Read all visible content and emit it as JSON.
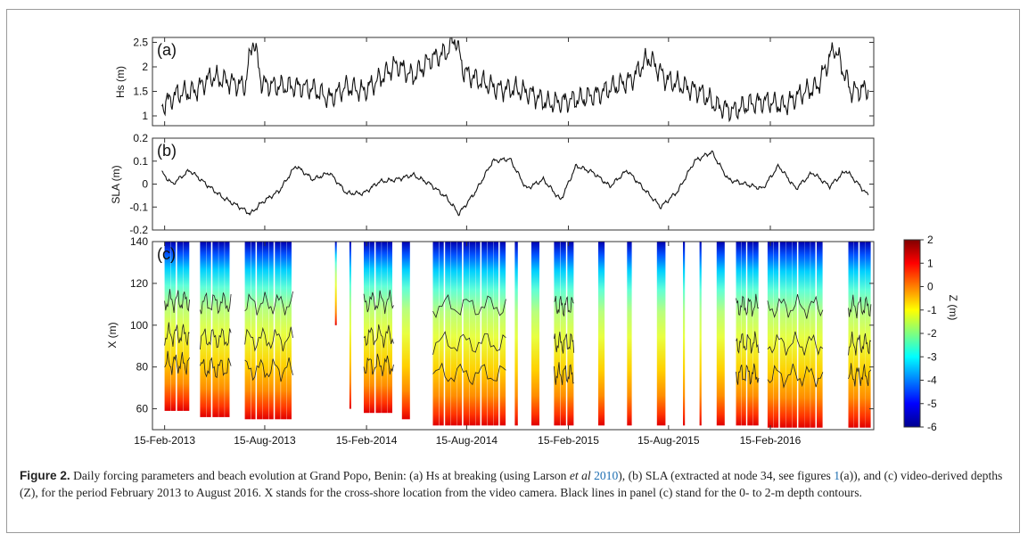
{
  "chart_data": [
    {
      "type": "line",
      "panel_label": "(a)",
      "ylabel": "Hs (m)",
      "ylim": [
        0.8,
        2.6
      ],
      "yticks": [
        "1",
        "1.5",
        "2",
        "2.5"
      ],
      "xlim": [
        "2013-01-24",
        "2016-08-20"
      ],
      "series": [
        {
          "x": [
            "2013-02-10",
            "2013-03-10",
            "2013-04-10",
            "2013-05-10",
            "2013-06-10",
            "2013-07-10",
            "2013-07-25",
            "2013-08-10",
            "2013-09-10",
            "2013-10-10",
            "2013-11-10",
            "2013-12-10",
            "2014-01-10",
            "2014-02-10",
            "2014-03-10",
            "2014-04-10",
            "2014-05-10",
            "2014-06-10",
            "2014-07-10",
            "2014-07-25",
            "2014-08-10",
            "2014-09-10",
            "2014-10-10",
            "2014-11-10",
            "2014-12-10",
            "2015-01-10",
            "2015-02-10",
            "2015-03-10",
            "2015-04-10",
            "2015-05-10",
            "2015-06-10",
            "2015-07-10",
            "2015-08-10",
            "2015-09-10",
            "2015-10-10",
            "2015-11-10",
            "2015-12-10",
            "2016-01-10",
            "2016-02-10",
            "2016-03-10",
            "2016-04-10",
            "2016-05-10",
            "2016-06-10",
            "2016-07-10",
            "2016-08-10"
          ],
          "values": [
            1.2,
            1.45,
            1.5,
            1.8,
            1.7,
            1.6,
            2.6,
            1.65,
            1.6,
            1.6,
            1.55,
            1.35,
            1.6,
            1.5,
            1.75,
            2.05,
            1.8,
            2.15,
            2.3,
            2.6,
            1.9,
            1.7,
            1.55,
            1.55,
            1.45,
            1.25,
            1.3,
            1.35,
            1.45,
            1.6,
            1.75,
            2.2,
            1.75,
            1.6,
            1.5,
            1.2,
            1.1,
            1.25,
            1.3,
            1.2,
            1.45,
            1.6,
            2.4,
            1.5,
            1.55
          ]
        }
      ]
    },
    {
      "type": "line",
      "panel_label": "(b)",
      "ylabel": "SLA (m)",
      "ylim": [
        -0.2,
        0.2
      ],
      "yticks": [
        "-0.2",
        "-0.1",
        "0",
        "0.1",
        "0.2"
      ],
      "xlim": [
        "2013-01-24",
        "2016-08-20"
      ],
      "series": [
        {
          "x": [
            "2013-02-10",
            "2013-03-01",
            "2013-04-01",
            "2013-05-01",
            "2013-06-01",
            "2013-07-01",
            "2013-07-20",
            "2013-08-10",
            "2013-09-10",
            "2013-10-10",
            "2013-11-10",
            "2013-12-10",
            "2014-01-10",
            "2014-02-10",
            "2014-03-10",
            "2014-04-10",
            "2014-05-10",
            "2014-06-10",
            "2014-07-10",
            "2014-08-01",
            "2014-09-01",
            "2014-10-01",
            "2014-11-01",
            "2014-12-01",
            "2015-01-01",
            "2015-02-01",
            "2015-03-01",
            "2015-04-01",
            "2015-05-01",
            "2015-06-01",
            "2015-07-01",
            "2015-08-01",
            "2015-09-01",
            "2015-10-01",
            "2015-11-01",
            "2015-12-01",
            "2016-01-01",
            "2016-02-01",
            "2016-03-01",
            "2016-04-01",
            "2016-05-01",
            "2016-06-01",
            "2016-07-01",
            "2016-08-10"
          ],
          "values": [
            0.05,
            0.0,
            0.06,
            0.0,
            -0.06,
            -0.1,
            -0.13,
            -0.08,
            -0.03,
            0.08,
            0.02,
            0.05,
            -0.04,
            -0.04,
            0.01,
            0.02,
            0.04,
            0.0,
            -0.06,
            -0.13,
            -0.03,
            0.1,
            0.11,
            -0.02,
            0.02,
            -0.07,
            0.08,
            0.05,
            -0.01,
            0.06,
            -0.02,
            -0.1,
            -0.03,
            0.1,
            0.14,
            0.02,
            0.0,
            -0.02,
            0.08,
            -0.02,
            0.05,
            -0.01,
            0.06,
            -0.05
          ]
        }
      ]
    },
    {
      "type": "heatmap",
      "panel_label": "(c)",
      "ylabel": "X (m)",
      "ylim": [
        50,
        140
      ],
      "yticks": [
        "60",
        "80",
        "100",
        "120",
        "140"
      ],
      "xticks": [
        "15-Feb-2013",
        "15-Aug-2013",
        "15-Feb-2014",
        "15-Aug-2014",
        "15-Feb-2015",
        "15-Aug-2015",
        "15-Feb-2016"
      ],
      "xlim": [
        "2013-01-24",
        "2016-08-20"
      ],
      "colorbar": {
        "label": "Z (m)",
        "range": [
          -6,
          2
        ],
        "ticks": [
          "2",
          "1",
          "0",
          "-1",
          "-2",
          "-3",
          "-4",
          "-5",
          "-6"
        ],
        "colormap": "jet"
      },
      "contours": "0- to 2-m depth contours (black lines)",
      "data_segments": [
        {
          "start": "2013-02-15",
          "end": "2013-04-01",
          "x_min": 59
        },
        {
          "start": "2013-04-20",
          "end": "2013-06-15",
          "x_min": 56
        },
        {
          "start": "2013-07-10",
          "end": "2013-10-05",
          "x_min": 55
        },
        {
          "start": "2013-12-20",
          "end": "2013-12-23",
          "x_min": 100
        },
        {
          "start": "2014-01-15",
          "end": "2014-01-18",
          "x_min": 60
        },
        {
          "start": "2014-02-10",
          "end": "2014-04-05",
          "x_min": 58
        },
        {
          "start": "2014-04-20",
          "end": "2014-05-05",
          "x_min": 55
        },
        {
          "start": "2014-06-15",
          "end": "2014-10-25",
          "x_min": 52
        },
        {
          "start": "2014-11-10",
          "end": "2014-11-16",
          "x_min": 52
        },
        {
          "start": "2014-12-10",
          "end": "2014-12-25",
          "x_min": 52
        },
        {
          "start": "2015-01-20",
          "end": "2015-02-25",
          "x_min": 52
        },
        {
          "start": "2015-04-10",
          "end": "2015-04-22",
          "x_min": 52
        },
        {
          "start": "2015-06-01",
          "end": "2015-06-10",
          "x_min": 52
        },
        {
          "start": "2015-07-25",
          "end": "2015-08-10",
          "x_min": 52
        },
        {
          "start": "2015-09-10",
          "end": "2015-09-14",
          "x_min": 52
        },
        {
          "start": "2015-10-10",
          "end": "2015-10-14",
          "x_min": 52
        },
        {
          "start": "2015-11-10",
          "end": "2015-11-25",
          "x_min": 52
        },
        {
          "start": "2015-12-15",
          "end": "2016-01-25",
          "x_min": 52
        },
        {
          "start": "2016-02-10",
          "end": "2016-05-20",
          "x_min": 51
        },
        {
          "start": "2016-07-05",
          "end": "2016-08-15",
          "x_min": 51
        }
      ]
    }
  ],
  "caption": {
    "label": "Figure 2.",
    "text_1": "Daily forcing parameters and beach evolution at Grand Popo, Benin: (a) Hs at breaking (using Larson ",
    "text_etal": "et al",
    "cite_year": "2010",
    "text_2": "), (b) SLA (extracted at node 34, see figures ",
    "cite_fig": "1",
    "text_3": "(a)), and (c) video-derived depths (Z), for the period February 2013 to August 2016. X stands for the cross-shore location from the video camera. Black lines in panel (c) stand for the 0- to 2-m depth contours."
  }
}
